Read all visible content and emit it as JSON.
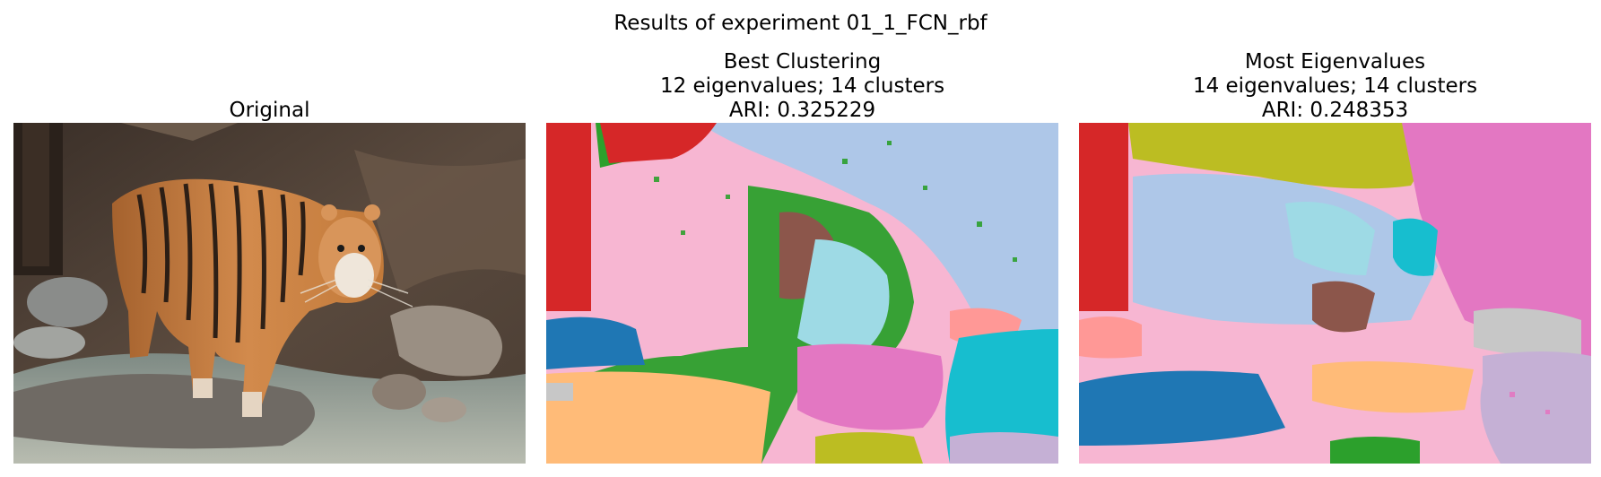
{
  "suptitle": "Results of experiment 01_1_FCN_rbf",
  "panels": [
    {
      "title": "Original",
      "image": "photo of a bengal tiger standing on rocks at a stream"
    },
    {
      "title": "Best Clustering",
      "subtitle": "12 eigenvalues; 14 clusters",
      "metric": "ARI: 0.325229",
      "image": "segmentation map with 14 colored clusters"
    },
    {
      "title": "Most Eigenvalues",
      "subtitle": "14 eigenvalues; 14 clusters",
      "metric": "ARI: 0.248353",
      "image": "segmentation map with 14 colored clusters"
    }
  ],
  "colors": {
    "red": "#d62728",
    "pink": "#f7b6d2",
    "green": "#2ca02c",
    "lightblue": "#aec7e8",
    "brown": "#8c564b",
    "cyan": "#9edae5",
    "teal": "#17becf",
    "blue": "#1f77b4",
    "orange": "#ffbb78",
    "salmon": "#ff9896",
    "magenta": "#e377c2",
    "olive": "#bcbd22",
    "lavender": "#c5b0d5",
    "gray": "#c7c7c7"
  }
}
